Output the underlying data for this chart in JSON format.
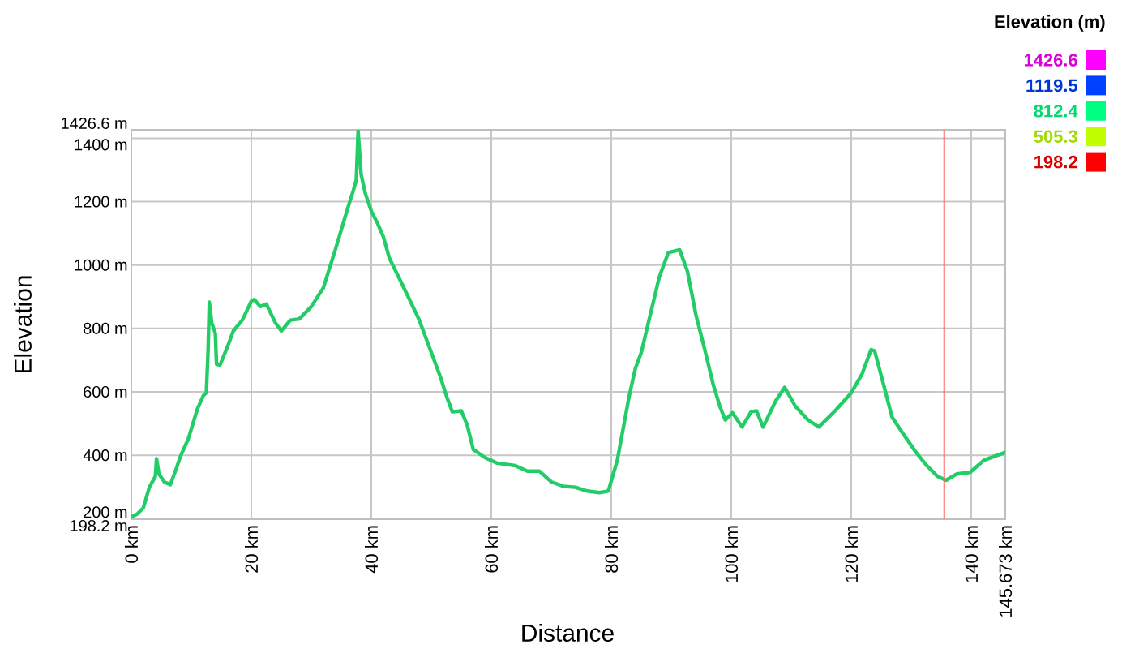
{
  "chart_data": {
    "type": "line",
    "xlabel": "Distance",
    "ylabel": "Elevation",
    "clabel": "Elevation (m)",
    "x": [
      0,
      1,
      2,
      3,
      4,
      4.2,
      4.6,
      5.5,
      6.5,
      7.5,
      8.2,
      9.5,
      11,
      12,
      12.5,
      12.8,
      13,
      13.4,
      14,
      14.2,
      14.8,
      16,
      17,
      18.5,
      20,
      20.5,
      21.5,
      22.5,
      24,
      25,
      26.5,
      28,
      30,
      32,
      34,
      36,
      37,
      37.5,
      37.8,
      38.3,
      39,
      40,
      41,
      42,
      43,
      45,
      46.5,
      48,
      50,
      51.5,
      52.5,
      53.5,
      55,
      56,
      57,
      59,
      61,
      64,
      66,
      68,
      70,
      72,
      74,
      76,
      78,
      79.5,
      81,
      82,
      83,
      84,
      85,
      86.5,
      88,
      89.5,
      91.4,
      92.7,
      94.1,
      95.7,
      97,
      98.1,
      99,
      100.2,
      101.8,
      103.3,
      104.2,
      105.3,
      107.4,
      108.9,
      110.7,
      112.8,
      114.6,
      117.3,
      120,
      121.8,
      123.3,
      123.9,
      125.4,
      126.8,
      128.6,
      130.8,
      132.6,
      134.4,
      135.8,
      137.6,
      139.8,
      142.1,
      143.9,
      145.673
    ],
    "series": [
      {
        "color": "#22cc66",
        "values": [
          205,
          215,
          234,
          299,
          333,
          389,
          341,
          316,
          307,
          358,
          397,
          452,
          545,
          588,
          597,
          733,
          883,
          818,
          784,
          687,
          685,
          741,
          792,
          826,
          886,
          891,
          869,
          877,
          818,
          792,
          826,
          830,
          869,
          928,
          1048,
          1175,
          1235,
          1269,
          1422,
          1286,
          1226,
          1170,
          1133,
          1090,
          1022,
          945,
          886,
          826,
          724,
          648,
          588,
          537,
          540,
          494,
          418,
          392,
          375,
          367,
          350,
          350,
          316,
          302,
          299,
          287,
          282,
          287,
          384,
          486,
          588,
          673,
          724,
          843,
          962,
          1039,
          1048,
          980,
          843,
          724,
          622,
          554,
          511,
          534,
          489,
          537,
          540,
          489,
          571,
          614,
          554,
          511,
          489,
          540,
          597,
          656,
          733,
          729,
          622,
          520,
          469,
          409,
          367,
          333,
          321,
          341,
          346,
          384,
          397,
          409
        ]
      }
    ],
    "xlim": [
      0,
      145.673
    ],
    "ylim": [
      198.2,
      1426.6
    ],
    "xticks": [
      {
        "value": 0,
        "label": "0 km"
      },
      {
        "value": 20,
        "label": "20 km"
      },
      {
        "value": 40,
        "label": "40 km"
      },
      {
        "value": 60,
        "label": "60 km"
      },
      {
        "value": 80,
        "label": "80 km"
      },
      {
        "value": 100,
        "label": "100 km"
      },
      {
        "value": 120,
        "label": "120 km"
      },
      {
        "value": 140,
        "label": "140 km"
      },
      {
        "value": 145.673,
        "label": "145.673 km"
      }
    ],
    "yticks": [
      {
        "value": 198.2,
        "label": "198.2 m"
      },
      {
        "value": 200,
        "label": "200 m"
      },
      {
        "value": 400,
        "label": "400 m"
      },
      {
        "value": 600,
        "label": "600 m"
      },
      {
        "value": 800,
        "label": "800 m"
      },
      {
        "value": 1000,
        "label": "1000 m"
      },
      {
        "value": 1200,
        "label": "1200 m"
      },
      {
        "value": 1400,
        "label": "1400 m"
      },
      {
        "value": 1426.6,
        "label": "1426.6 m"
      }
    ],
    "cticks": [
      1426.6,
      1119.5,
      812.4,
      505.3,
      198.2
    ],
    "grid": true,
    "ref_lines": [
      {
        "axis": "x",
        "value": 135.5,
        "color": "#ff6666"
      }
    ]
  }
}
